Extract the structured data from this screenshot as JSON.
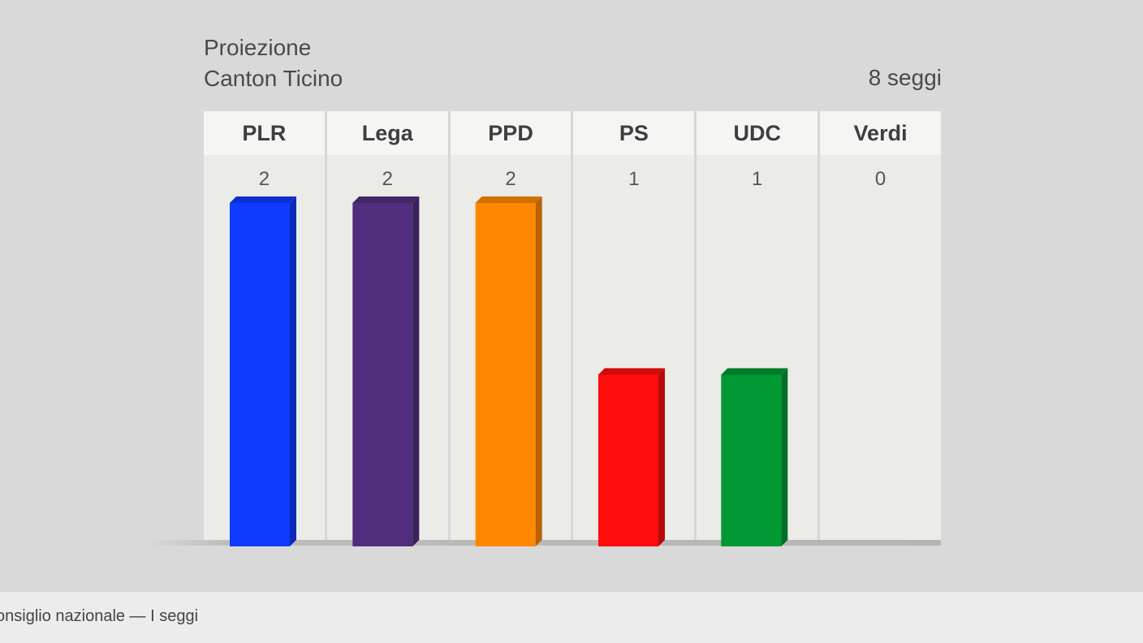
{
  "header": {
    "title": "Proiezione",
    "subtitle": "Canton Ticino",
    "total_seats": "8 seggi"
  },
  "footer": {
    "caption": "onsiglio nazionale — I seggi"
  },
  "chart_data": {
    "type": "bar",
    "categories": [
      "PLR",
      "Lega",
      "PPD",
      "PS",
      "UDC",
      "Verdi"
    ],
    "values": [
      2,
      2,
      2,
      1,
      1,
      0
    ],
    "colors": [
      "#0f3bff",
      "#512e7d",
      "#ff8800",
      "#ff0c0c",
      "#009933",
      "#cccccc"
    ],
    "ylim": [
      0,
      2
    ],
    "grid": false,
    "legend": "none"
  }
}
